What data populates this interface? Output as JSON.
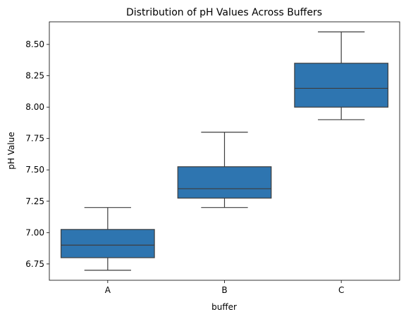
{
  "chart_data": {
    "type": "box",
    "title": "Distribution of pH Values Across Buffers",
    "xlabel": "buffer",
    "ylabel": "pH Value",
    "ylim": [
      6.62,
      8.68
    ],
    "yticks": [
      "6.75",
      "7.00",
      "7.25",
      "7.50",
      "7.75",
      "8.00",
      "8.25",
      "8.50"
    ],
    "ytick_values": [
      6.75,
      7.0,
      7.25,
      7.5,
      7.75,
      8.0,
      8.25,
      8.5
    ],
    "categories": [
      "A",
      "B",
      "C"
    ],
    "boxes": [
      {
        "category": "A",
        "whisker_low": 6.7,
        "q1": 6.8,
        "median": 6.9,
        "q3": 7.025,
        "whisker_high": 7.2
      },
      {
        "category": "B",
        "whisker_low": 7.2,
        "q1": 7.275,
        "median": 7.35,
        "q3": 7.525,
        "whisker_high": 7.8
      },
      {
        "category": "C",
        "whisker_low": 7.9,
        "q1": 8.0,
        "median": 8.15,
        "q3": 8.35,
        "whisker_high": 8.6
      }
    ],
    "box_color": "#2e75b0",
    "line_color": "#3d3d3d",
    "grid": false,
    "legend": "none"
  }
}
